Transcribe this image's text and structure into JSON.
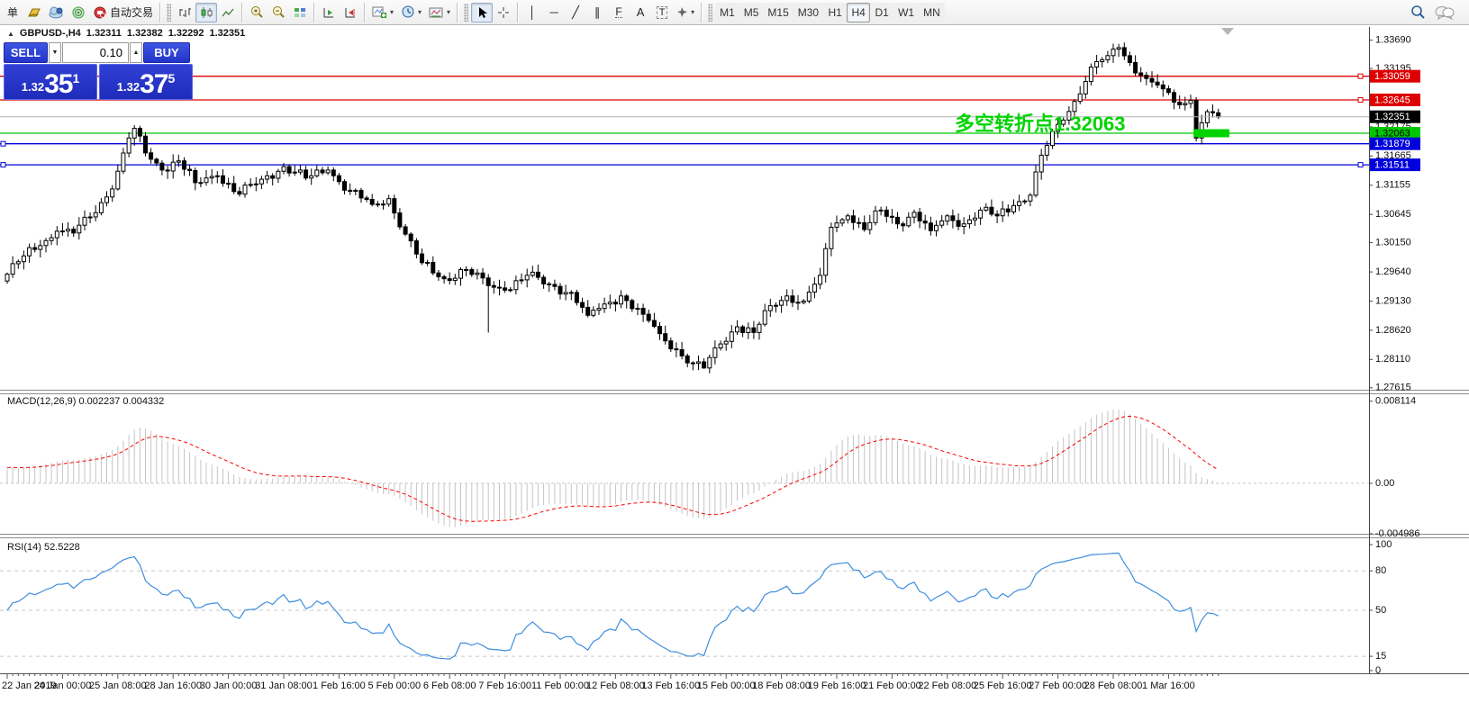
{
  "toolbar": {
    "new_order_label": "单",
    "autotrade_label": "自动交易",
    "glyphs": {
      "crosshair": "+",
      "vertical_line": "│",
      "horizontal_line": "─",
      "trendline": "╱",
      "channel": "∥",
      "fibonacci": "F",
      "text": "A",
      "text_label": "T"
    },
    "timeframes": [
      "M1",
      "M5",
      "M15",
      "M30",
      "H1",
      "H4",
      "D1",
      "W1",
      "MN"
    ],
    "active_timeframe": "H4",
    "icon_names": [
      "new-order",
      "profile-icon",
      "community-icon",
      "signals-icon",
      "autotrade-icon",
      "bar-chart-icon",
      "candlestick-icon",
      "line-chart-icon",
      "zoom-in-icon",
      "zoom-out-icon",
      "tile-windows-icon",
      "auto-scroll-icon",
      "chart-shift-icon",
      "indicators-icon",
      "periods-icon",
      "templates-icon",
      "cursor-icon",
      "crosshair-icon",
      "search-icon",
      "chat-icon"
    ]
  },
  "symbol_bar": {
    "symbol": "GBPUSD-,H4",
    "open": "1.32311",
    "high": "1.32382",
    "low": "1.32292",
    "close": "1.32351"
  },
  "trade_panel": {
    "sell_label": "SELL",
    "buy_label": "BUY",
    "volume": "0.10",
    "sell_price": {
      "prefix": "1.32",
      "main": "35",
      "sup": "1"
    },
    "buy_price": {
      "prefix": "1.32",
      "main": "37",
      "sup": "5"
    }
  },
  "colors": {
    "level_red": "#dd0000",
    "level_green": "#00c800",
    "level_blue": "#0000dd",
    "bid_line": "#b4b4b4",
    "bid_badge": "#000000",
    "annotation_green": "#00d400",
    "macd_hist": "#c4c4c4",
    "macd_signal": "#ff0000",
    "rsi_line": "#3e8ede",
    "panel_blue": "#2b3cd6",
    "axis_text": "#111111",
    "grid_dash": "#c8c8c8"
  },
  "chart_data": {
    "type": "candlestick",
    "symbol": "GBPUSD",
    "timeframe": "H4",
    "bars": 220,
    "last_bar": {
      "open": 1.32311,
      "high": 1.32382,
      "low": 1.32292,
      "close": 1.32351
    },
    "price_axis_ticks": [
      "1.33690",
      "1.33195",
      "1.32175",
      "1.31665",
      "1.31155",
      "1.30645",
      "1.30150",
      "1.29640",
      "1.29130",
      "1.28620",
      "1.28110",
      "1.27615"
    ],
    "ylim": [
      1.2758,
      1.3392
    ],
    "x_labels": [
      "22 Jan 2019",
      "24 Jan 00:00",
      "25 Jan 08:00",
      "28 Jan 16:00",
      "30 Jan 00:00",
      "31 Jan 08:00",
      "1 Feb 16:00",
      "5 Feb 00:00",
      "6 Feb 08:00",
      "7 Feb 16:00",
      "11 Feb 00:00",
      "12 Feb 08:00",
      "13 Feb 16:00",
      "15 Feb 00:00",
      "18 Feb 08:00",
      "19 Feb 16:00",
      "21 Feb 00:00",
      "22 Feb 08:00",
      "25 Feb 16:00",
      "27 Feb 00:00",
      "28 Feb 08:00",
      "1 Mar 16:00"
    ],
    "x_label_every_bars": 10,
    "close_anchors": [
      [
        0,
        1.296
      ],
      [
        3,
        1.2992
      ],
      [
        6,
        1.301
      ],
      [
        9,
        1.3035
      ],
      [
        12,
        1.3032
      ],
      [
        15,
        1.306
      ],
      [
        18,
        1.3095
      ],
      [
        20,
        1.314
      ],
      [
        22,
        1.3198
      ],
      [
        23,
        1.3215
      ],
      [
        25,
        1.3172
      ],
      [
        28,
        1.3142
      ],
      [
        31,
        1.3158
      ],
      [
        34,
        1.312
      ],
      [
        38,
        1.3132
      ],
      [
        42,
        1.31
      ],
      [
        46,
        1.3126
      ],
      [
        50,
        1.3148
      ],
      [
        54,
        1.3128
      ],
      [
        58,
        1.3142
      ],
      [
        62,
        1.3105
      ],
      [
        66,
        1.3082
      ],
      [
        69,
        1.3092
      ],
      [
        72,
        1.303
      ],
      [
        75,
        1.298
      ],
      [
        79,
        1.2952
      ],
      [
        83,
        1.2968
      ],
      [
        87,
        1.294
      ],
      [
        90,
        1.2932
      ],
      [
        94,
        1.2958
      ],
      [
        98,
        1.2942
      ],
      [
        102,
        1.2928
      ],
      [
        105,
        1.2888
      ],
      [
        108,
        1.2908
      ],
      [
        111,
        1.2922
      ],
      [
        115,
        1.289
      ],
      [
        118,
        1.2856
      ],
      [
        121,
        1.2828
      ],
      [
        124,
        1.2804
      ],
      [
        126,
        1.2796
      ],
      [
        129,
        1.2838
      ],
      [
        132,
        1.2868
      ],
      [
        135,
        1.2858
      ],
      [
        138,
        1.2905
      ],
      [
        141,
        1.2922
      ],
      [
        144,
        1.2913
      ],
      [
        147,
        1.2958
      ],
      [
        149,
        1.3042
      ],
      [
        152,
        1.3062
      ],
      [
        155,
        1.3038
      ],
      [
        158,
        1.3072
      ],
      [
        161,
        1.3048
      ],
      [
        164,
        1.3068
      ],
      [
        167,
        1.3036
      ],
      [
        170,
        1.3062
      ],
      [
        173,
        1.3048
      ],
      [
        176,
        1.3072
      ],
      [
        179,
        1.3062
      ],
      [
        182,
        1.308
      ],
      [
        185,
        1.3098
      ],
      [
        187,
        1.3168
      ],
      [
        190,
        1.3222
      ],
      [
        193,
        1.3262
      ],
      [
        196,
        1.3322
      ],
      [
        199,
        1.3342
      ],
      [
        201,
        1.3356
      ],
      [
        203,
        1.333
      ],
      [
        206,
        1.3302
      ],
      [
        209,
        1.3284
      ],
      [
        212,
        1.3256
      ],
      [
        214,
        1.3264
      ],
      [
        215,
        1.3198
      ],
      [
        217,
        1.3244
      ],
      [
        219,
        1.32351
      ]
    ],
    "special_wicks": [
      {
        "bar": 23,
        "high": 1.32205
      },
      {
        "bar": 87,
        "low": 1.2858
      },
      {
        "bar": 126,
        "low": 1.27945
      },
      {
        "bar": 201,
        "high": 1.33626
      }
    ],
    "level_lines": [
      {
        "price": 1.33059,
        "badge": "1.33059",
        "color": "#dd0000",
        "text_color": "#ffffff",
        "right_handle": true
      },
      {
        "price": 1.32645,
        "badge": "1.32645",
        "color": "#dd0000",
        "text_color": "#ffffff",
        "right_handle": true
      },
      {
        "price": 1.32351,
        "badge": "1.32351",
        "color": "#b4b4b4",
        "badge_color": "#000000",
        "text_color": "#ffffff",
        "is_bid": true
      },
      {
        "price": 1.32063,
        "badge": "1.32063",
        "color": "#00c800",
        "text_color": "#000000"
      },
      {
        "price": 1.31879,
        "badge": "1.31879",
        "color": "#0000dd",
        "text_color": "#ffffff",
        "left_handle": true
      },
      {
        "price": 1.31511,
        "badge": "1.31511",
        "color": "#0000dd",
        "text_color": "#ffffff",
        "left_handle": true,
        "right_handle": true
      }
    ],
    "annotation": {
      "text": "多空转折点1.32063",
      "price": 1.32063,
      "color": "#00d400"
    },
    "highlight_bar": {
      "from_bar": 215,
      "to_bar": 220.5,
      "price": 1.32063,
      "color": "#00d400"
    },
    "indicators": [
      {
        "name": "MACD",
        "label": "MACD(12,26,9) 0.002237 0.004332",
        "params": [
          12,
          26,
          9
        ],
        "values": [
          "0.002237",
          "0.004332"
        ],
        "axis_ticks": [
          {
            "v": 0.008114,
            "t": "0.008114"
          },
          {
            "v": 0,
            "t": "0.00"
          },
          {
            "v": -0.004986,
            "t": "-0.004986"
          }
        ],
        "ylim": [
          -0.00499,
          0.0088
        ]
      },
      {
        "name": "RSI",
        "label": "RSI(14) 52.5228",
        "params": [
          14
        ],
        "value": "52.5228",
        "axis_ticks": [
          {
            "v": 100,
            "t": "100"
          },
          {
            "v": 80,
            "t": "80"
          },
          {
            "v": 50,
            "t": "50"
          },
          {
            "v": 15,
            "t": "15"
          },
          {
            "v": 0,
            "t": "0"
          }
        ],
        "dashed_levels": [
          80,
          50,
          15
        ],
        "ylim": [
          0,
          100
        ]
      }
    ]
  }
}
